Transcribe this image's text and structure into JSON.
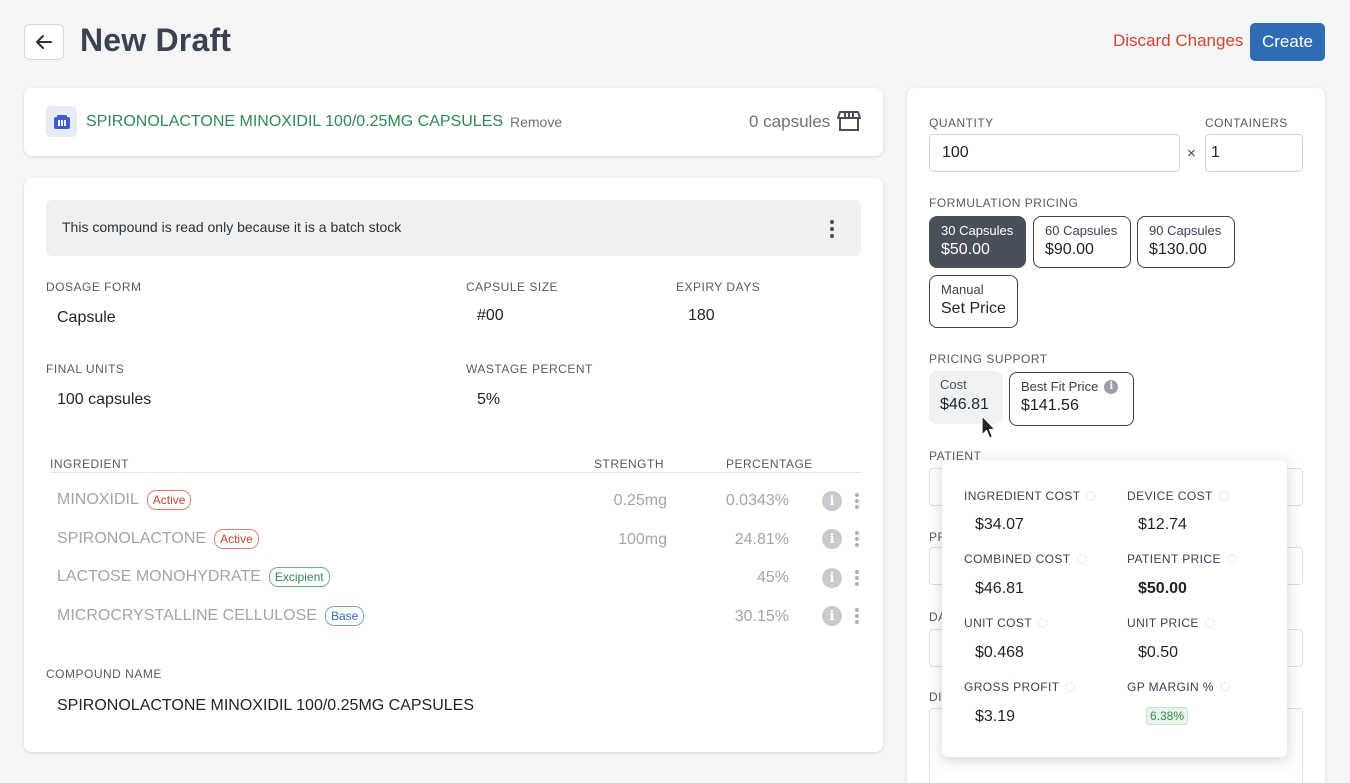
{
  "header": {
    "title": "New Draft",
    "discard_label": "Discard Changes",
    "create_label": "Create"
  },
  "compound_bar": {
    "name": "SPIRONOLACTONE MINOXIDIL 100/0.25MG CAPSULES",
    "separator": "•",
    "remove_label": "Remove",
    "capsule_count": "0 capsules"
  },
  "details": {
    "readonly_notice": "This compound is read only because it is a batch stock",
    "dosage_form": {
      "label": "DOSAGE FORM",
      "value": "Capsule"
    },
    "capsule_size": {
      "label": "CAPSULE SIZE",
      "value": "#00"
    },
    "expiry_days": {
      "label": "EXPIRY DAYS",
      "value": "180"
    },
    "final_units": {
      "label": "FINAL UNITS",
      "value": "100 capsules"
    },
    "wastage_percent": {
      "label": "WASTAGE PERCENT",
      "value": "5%"
    },
    "ingredients_table": {
      "headers": {
        "ingredient": "INGREDIENT",
        "strength": "STRENGTH",
        "percentage": "PERCENTAGE"
      },
      "rows": [
        {
          "name": "MINOXIDIL",
          "badge": "Active",
          "strength": "0.25mg",
          "percentage": "0.0343%"
        },
        {
          "name": "SPIRONOLACTONE",
          "badge": "Active",
          "strength": "100mg",
          "percentage": "24.81%"
        },
        {
          "name": "LACTOSE MONOHYDRATE",
          "badge": "Excipient",
          "strength": "",
          "percentage": "45%"
        },
        {
          "name": "MICROCRYSTALLINE CELLULOSE",
          "badge": "Base",
          "strength": "",
          "percentage": "30.15%"
        }
      ]
    },
    "compound_name": {
      "label": "COMPOUND NAME",
      "value": "SPIRONOLACTONE MINOXIDIL 100/0.25MG CAPSULES"
    }
  },
  "right_panel": {
    "quantity": {
      "label": "QUANTITY",
      "value": "100"
    },
    "multiply_sign": "×",
    "containers": {
      "label": "CONTAINERS",
      "value": "1"
    },
    "formulation_pricing": {
      "label": "FORMULATION PRICING",
      "options": [
        {
          "name": "30 Capsules",
          "price": "$50.00",
          "selected": true
        },
        {
          "name": "60 Capsules",
          "price": "$90.00",
          "selected": false
        },
        {
          "name": "90 Capsules",
          "price": "$130.00",
          "selected": false
        },
        {
          "name": "Manual",
          "price": "Set Price",
          "selected": false
        }
      ]
    },
    "pricing_support": {
      "label": "PRICING SUPPORT",
      "cost": {
        "label": "Cost",
        "value": "$46.81"
      },
      "best_fit": {
        "label": "Best Fit Price",
        "value": "$141.56"
      }
    },
    "patient_label": "PATIENT",
    "partial_labels": {
      "pr": "PR",
      "da": "DA",
      "di": "DI"
    }
  },
  "cost_popover": {
    "ingredient_cost": {
      "label": "INGREDIENT COST",
      "value": "$34.07"
    },
    "device_cost": {
      "label": "DEVICE COST",
      "value": "$12.74"
    },
    "combined_cost": {
      "label": "COMBINED COST",
      "value": "$46.81"
    },
    "patient_price": {
      "label": "PATIENT PRICE",
      "value": "$50.00"
    },
    "unit_cost": {
      "label": "UNIT COST",
      "value": "$0.468"
    },
    "unit_price": {
      "label": "UNIT PRICE",
      "value": "$0.50"
    },
    "gross_profit": {
      "label": "GROSS PROFIT",
      "value": "$3.19"
    },
    "gp_margin": {
      "label": "GP MARGIN %",
      "value": "6.38%"
    }
  },
  "colors": {
    "primary": "#2f6cb3",
    "danger": "#d2452e",
    "success": "#2f8a55",
    "selected_option": "#4a5059"
  }
}
